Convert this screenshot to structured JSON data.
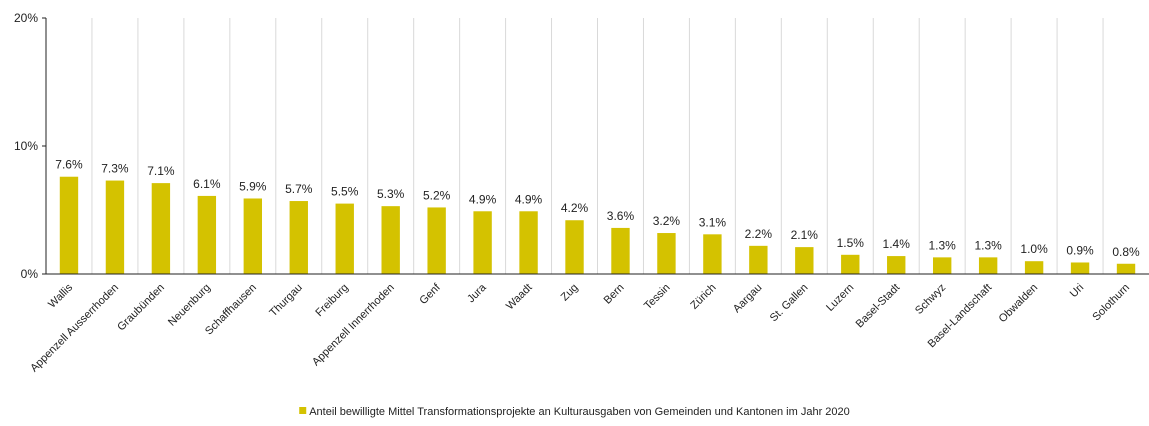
{
  "chart_data": {
    "type": "bar",
    "categories": [
      "Wallis",
      "Appenzell Ausserrhoden",
      "Graubünden",
      "Neuenburg",
      "Schaffhausen",
      "Thurgau",
      "Freiburg",
      "Appenzell Innerrhoden",
      "Genf",
      "Jura",
      "Waadt",
      "Zug",
      "Bern",
      "Tessin",
      "Zürich",
      "Aargau",
      "St. Gallen",
      "Luzern",
      "Basel-Stadt",
      "Schwyz",
      "Basel-Landschaft",
      "Obwalden",
      "Uri",
      "Solothurn"
    ],
    "series": [
      {
        "name": "Anteil bewilligte Mittel Transformationsprojekte an Kulturausgaben von Gemeinden und Kantonen im Jahr 2020",
        "color": "#d4c200",
        "values": [
          7.6,
          7.3,
          7.1,
          6.1,
          5.9,
          5.7,
          5.5,
          5.3,
          5.2,
          4.9,
          4.9,
          4.2,
          3.6,
          3.2,
          3.1,
          2.2,
          2.1,
          1.5,
          1.4,
          1.3,
          1.3,
          1.0,
          0.9,
          0.8
        ],
        "value_labels": [
          "7.6%",
          "7.3%",
          "7.1%",
          "6.1%",
          "5.9%",
          "5.7%",
          "5.5%",
          "5.3%",
          "5.2%",
          "4.9%",
          "4.9%",
          "4.2%",
          "3.6%",
          "3.2%",
          "3.1%",
          "2.2%",
          "2.1%",
          "1.5%",
          "1.4%",
          "1.3%",
          "1.3%",
          "1.0%",
          "0.9%",
          "0.8%"
        ]
      }
    ],
    "ylim": [
      0,
      20
    ],
    "yticks": [
      {
        "value": 0,
        "label": "0%"
      },
      {
        "value": 10,
        "label": "10%"
      },
      {
        "value": 20,
        "label": "20%"
      }
    ],
    "legend": "bottom"
  }
}
